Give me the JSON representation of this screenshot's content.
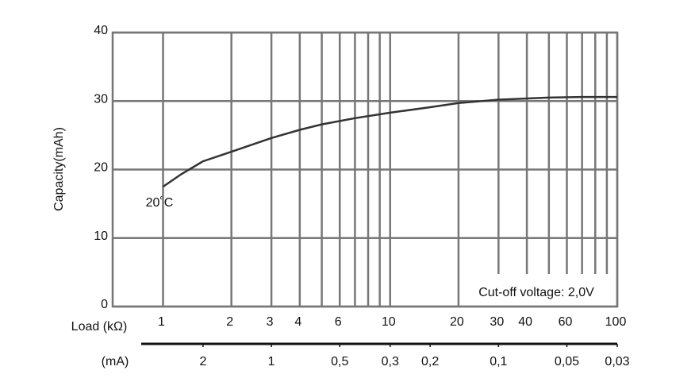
{
  "chart_data": {
    "type": "line",
    "x_label": "Load (kΩ)",
    "x2_label": "(mA)",
    "y_label": "Capacity(mAh)",
    "annotations": [
      "20˚C",
      "Cut-off voltage: 2,0V"
    ],
    "x": [
      1,
      1.2,
      1.5,
      2,
      3,
      4,
      5,
      7,
      10,
      15,
      20,
      30,
      50,
      70,
      100
    ],
    "series": [
      {
        "color": "#333333",
        "values": [
          17.5,
          19.3,
          21.2,
          22.6,
          24.6,
          25.8,
          26.6,
          27.5,
          28.3,
          29.1,
          29.7,
          30.2,
          30.5,
          30.6,
          30.6
        ]
      }
    ],
    "xscale": "log",
    "xlim": [
      0.6,
      100
    ],
    "xticks": [
      1,
      2,
      3,
      4,
      6,
      10,
      20,
      30,
      40,
      60,
      100
    ],
    "x_minor_grid": [
      5,
      7,
      8,
      9,
      50,
      70,
      80,
      90
    ],
    "x2scale": "log",
    "x2lim": [
      5,
      0.03
    ],
    "x2ticks": [
      2,
      1,
      {
        "value": 0.5,
        "label": "0,5"
      },
      {
        "value": 0.3,
        "label": "0,3"
      },
      {
        "value": 0.2,
        "label": "0,2"
      },
      {
        "value": 0.1,
        "label": "0,1"
      },
      {
        "value": 0.05,
        "label": "0,05"
      },
      {
        "value": 0.03,
        "label": "0,03"
      }
    ],
    "ylim": [
      0,
      40
    ],
    "yticks": [
      0,
      10,
      20,
      30,
      40
    ],
    "grid": true
  }
}
